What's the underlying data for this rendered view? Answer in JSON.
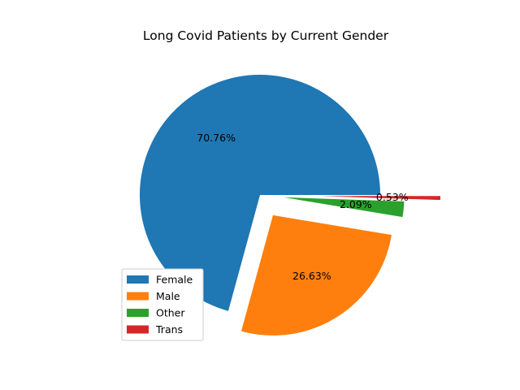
{
  "chart_data": {
    "type": "pie",
    "title": "Long Covid Patients by Current Gender",
    "categories": [
      "Female",
      "Male",
      "Other",
      "Trans"
    ],
    "values": [
      70.76,
      26.63,
      2.09,
      0.53
    ],
    "value_labels": [
      "70.76%",
      "26.63%",
      "2.09%",
      "0.53%"
    ],
    "explode": [
      0,
      0.2,
      0.2,
      0.5
    ],
    "start_angle_deg": 0,
    "colors": [
      "#1f77b4",
      "#ff7f0e",
      "#2ca02c",
      "#d62728"
    ],
    "legend": {
      "placement": "lower-left",
      "entries": [
        "Female",
        "Male",
        "Other",
        "Trans"
      ]
    }
  }
}
